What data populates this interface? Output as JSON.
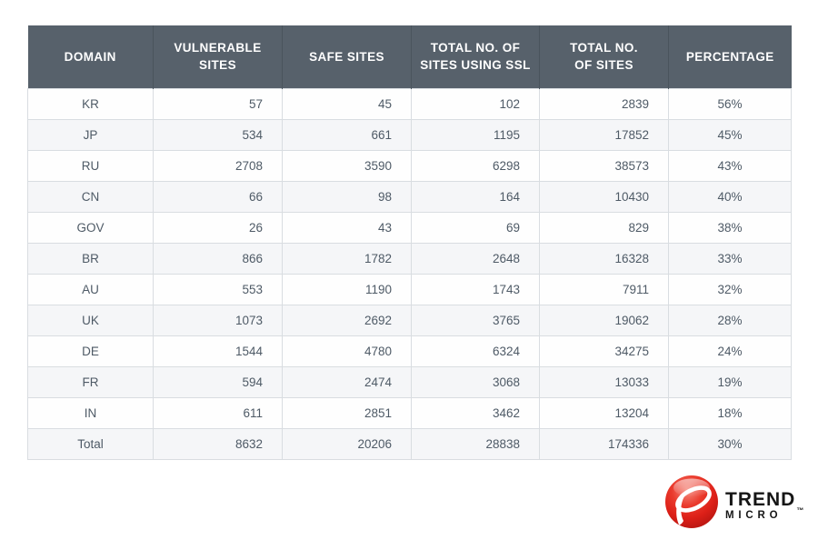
{
  "chart_data": {
    "type": "table",
    "columns": [
      "DOMAIN",
      "VULNERABLE\nSITES",
      "SAFE SITES",
      "TOTAL NO. OF\nSITES USING SSL",
      "TOTAL NO.\nOF SITES",
      "PERCENTAGE"
    ],
    "rows": [
      [
        "KR",
        "57",
        "45",
        "102",
        "2839",
        "56%"
      ],
      [
        "JP",
        "534",
        "661",
        "1195",
        "17852",
        "45%"
      ],
      [
        "RU",
        "2708",
        "3590",
        "6298",
        "38573",
        "43%"
      ],
      [
        "CN",
        "66",
        "98",
        "164",
        "10430",
        "40%"
      ],
      [
        "GOV",
        "26",
        "43",
        "69",
        "829",
        "38%"
      ],
      [
        "BR",
        "866",
        "1782",
        "2648",
        "16328",
        "33%"
      ],
      [
        "AU",
        "553",
        "1190",
        "1743",
        "7911",
        "32%"
      ],
      [
        "UK",
        "1073",
        "2692",
        "3765",
        "19062",
        "28%"
      ],
      [
        "DE",
        "1544",
        "4780",
        "6324",
        "34275",
        "24%"
      ],
      [
        "FR",
        "594",
        "2474",
        "3068",
        "13033",
        "19%"
      ],
      [
        "IN",
        "611",
        "2851",
        "3462",
        "13204",
        "18%"
      ],
      [
        "Total",
        "8632",
        "20206",
        "28838",
        "174336",
        "30%"
      ]
    ]
  },
  "logo": {
    "brand_line1": "TREND",
    "brand_line2": "MICRO",
    "trademark": "™",
    "ball_icon": "trend-micro-ball-icon"
  },
  "colors": {
    "header_bg": "#57616b",
    "header_divider": "#4a545d",
    "header_text": "#ffffff",
    "row_alt_bg": "#f5f6f8",
    "border": "#d9dde1",
    "body_text": "#4e5a66",
    "brand_red": "#e2231a",
    "brand_black": "#161616"
  }
}
